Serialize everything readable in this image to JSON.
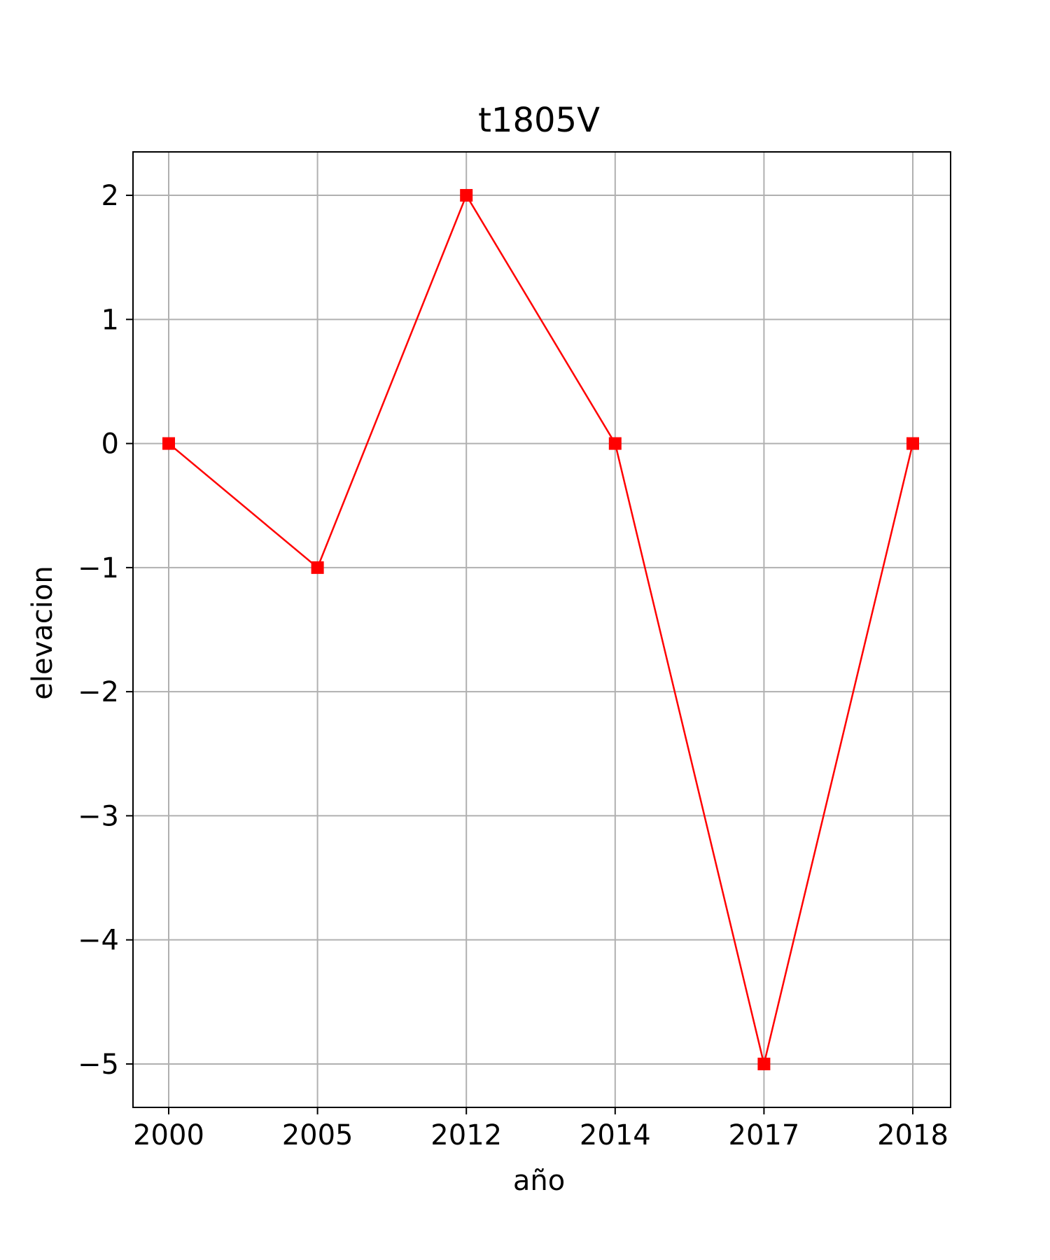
{
  "chart_data": {
    "type": "line",
    "title": "t1805V",
    "xlabel": "año",
    "ylabel": "elevacion",
    "categories": [
      "2000",
      "2005",
      "2012",
      "2014",
      "2017",
      "2018"
    ],
    "series": [
      {
        "values": [
          0,
          -1,
          2,
          0,
          -5,
          0
        ],
        "color": "#ff0000",
        "marker": "square"
      }
    ],
    "yticks": [
      2,
      1,
      0,
      -1,
      -2,
      -3,
      -4,
      -5
    ],
    "ytick_labels": [
      "2",
      "1",
      "0",
      "−1",
      "−2",
      "−3",
      "−4",
      "−5"
    ],
    "ylim": [
      -5.35,
      2.35
    ],
    "grid": true,
    "grid_color": "#b0b0b0",
    "axes_color": "#000000"
  }
}
